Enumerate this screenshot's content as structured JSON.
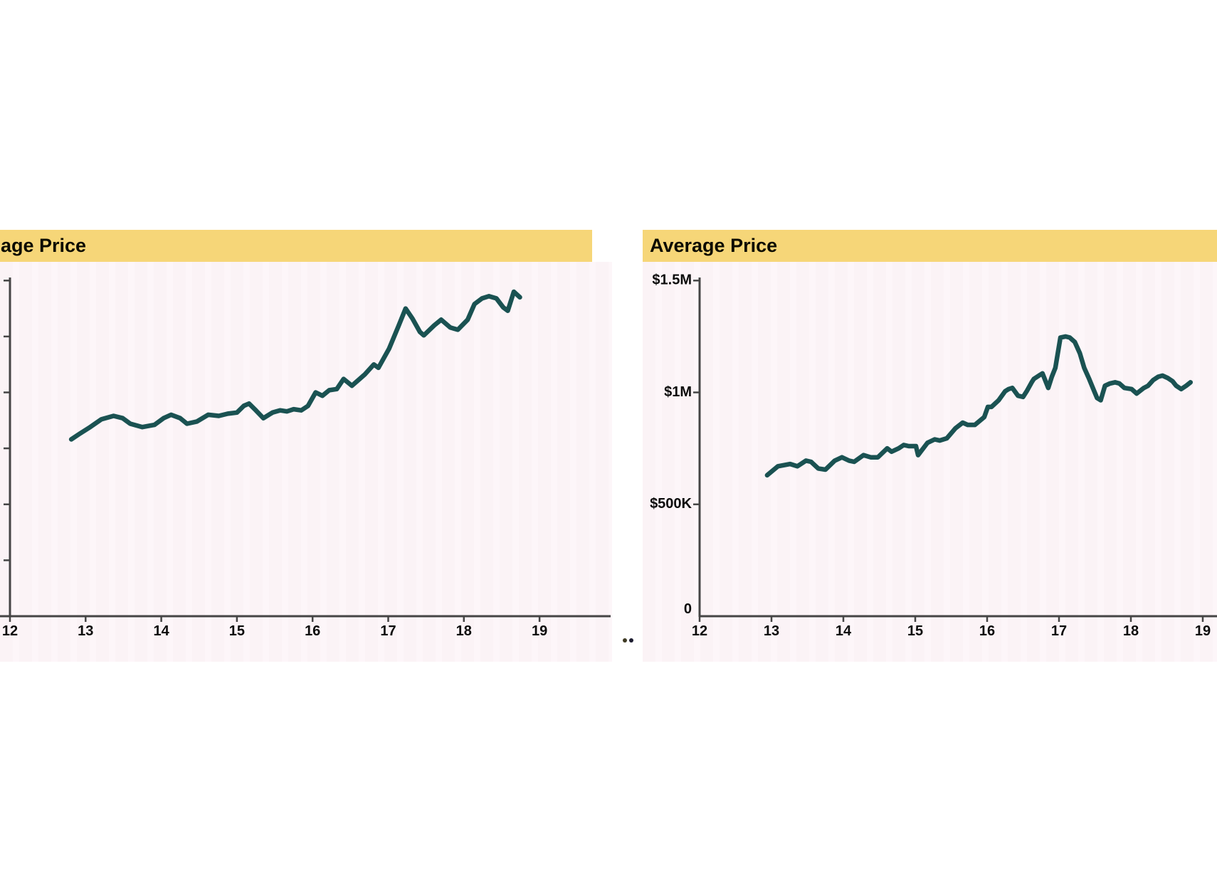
{
  "colors": {
    "header_yellow": "#f6d678",
    "plot_background": "#fbf3f6",
    "line_teal": "#1a5252",
    "axis_gray": "#454545",
    "label_black": "#0b0b0b",
    "separator_dot_left": "#3f3a24",
    "separator_dot_right": "#1c1c30"
  },
  "separator": {
    "dot_count": 2
  },
  "chart_data": [
    {
      "type": "line",
      "panel": "left",
      "title": "age Price",
      "title_note_visible_fragment": "age Price",
      "x_tick_labels": [
        "12",
        "13",
        "14",
        "15",
        "16",
        "17",
        "18",
        "19"
      ],
      "x_tick_values": [
        12,
        13,
        14,
        15,
        16,
        17,
        18,
        19
      ],
      "y_tick_values": [
        1500,
        1250,
        1000,
        750,
        500,
        250
      ],
      "y_tick_labels": [
        "",
        "",
        "",
        "",
        "",
        ""
      ],
      "origin_label": "",
      "xlim": [
        12,
        19.8
      ],
      "ylim": [
        0,
        1500
      ],
      "grid": false,
      "legend": "none",
      "series": [
        {
          "name": "Average Price",
          "x": [
            12.81,
            12.92,
            13.06,
            13.21,
            13.37,
            13.49,
            13.59,
            13.75,
            13.91,
            14.03,
            14.13,
            14.25,
            14.34,
            14.47,
            14.62,
            14.76,
            14.88,
            15.0,
            15.09,
            15.16,
            15.25,
            15.35,
            15.47,
            15.57,
            15.66,
            15.75,
            15.85,
            15.94,
            16.04,
            16.13,
            16.22,
            16.32,
            16.41,
            16.52,
            16.69,
            16.81,
            16.87,
            17.01,
            17.14,
            17.23,
            17.32,
            17.42,
            17.47,
            17.61,
            17.7,
            17.82,
            17.92,
            18.05,
            18.14,
            18.24,
            18.33,
            18.43,
            18.52,
            18.58,
            18.66,
            18.74
          ],
          "y_thousand_usd": [
            790,
            815,
            845,
            880,
            895,
            885,
            860,
            845,
            855,
            885,
            900,
            885,
            860,
            870,
            900,
            895,
            905,
            910,
            940,
            950,
            920,
            885,
            910,
            920,
            915,
            925,
            920,
            940,
            1000,
            985,
            1010,
            1015,
            1060,
            1030,
            1080,
            1125,
            1110,
            1195,
            1300,
            1375,
            1330,
            1270,
            1255,
            1300,
            1325,
            1290,
            1280,
            1325,
            1395,
            1420,
            1430,
            1420,
            1380,
            1365,
            1450,
            1425
          ]
        }
      ]
    },
    {
      "type": "line",
      "panel": "right",
      "title": "Average Price",
      "x_tick_labels": [
        "12",
        "13",
        "14",
        "15",
        "16",
        "17",
        "18",
        "19"
      ],
      "x_tick_values": [
        12,
        13,
        14,
        15,
        16,
        17,
        18,
        19
      ],
      "y_tick_values": [
        1500,
        1000,
        500
      ],
      "y_tick_labels": [
        "$1.5M",
        "$1M",
        "$500K"
      ],
      "origin_label": "0",
      "xlim": [
        12,
        19.2
      ],
      "ylim": [
        0,
        1500
      ],
      "grid": false,
      "legend": "none",
      "series": [
        {
          "name": "Average Price",
          "x": [
            12.94,
            13.09,
            13.26,
            13.36,
            13.48,
            13.55,
            13.65,
            13.75,
            13.88,
            13.98,
            14.08,
            14.15,
            14.28,
            14.38,
            14.48,
            14.61,
            14.67,
            14.77,
            14.84,
            14.91,
            15.01,
            15.04,
            15.17,
            15.27,
            15.34,
            15.44,
            15.56,
            15.66,
            15.73,
            15.83,
            15.96,
            16.01,
            16.06,
            16.16,
            16.25,
            16.3,
            16.35,
            16.43,
            16.5,
            16.55,
            16.62,
            16.65,
            16.72,
            16.77,
            16.85,
            16.9,
            16.95,
            17.02,
            17.09,
            17.15,
            17.22,
            17.29,
            17.35,
            17.42,
            17.49,
            17.53,
            17.58,
            17.64,
            17.71,
            17.78,
            17.84,
            17.91,
            18.01,
            18.08,
            18.18,
            18.24,
            18.31,
            18.38,
            18.44,
            18.51,
            18.58,
            18.63,
            18.7,
            18.77,
            18.83
          ],
          "y_thousand_usd": [
            630,
            670,
            680,
            670,
            695,
            690,
            660,
            655,
            695,
            710,
            695,
            690,
            720,
            710,
            710,
            750,
            735,
            750,
            765,
            760,
            760,
            720,
            775,
            790,
            785,
            795,
            840,
            865,
            855,
            855,
            890,
            935,
            935,
            965,
            1005,
            1015,
            1020,
            985,
            980,
            1005,
            1045,
            1060,
            1075,
            1085,
            1020,
            1070,
            1110,
            1245,
            1250,
            1245,
            1225,
            1175,
            1110,
            1060,
            1005,
            975,
            965,
            1030,
            1040,
            1045,
            1040,
            1020,
            1015,
            995,
            1020,
            1030,
            1055,
            1070,
            1075,
            1065,
            1050,
            1030,
            1015,
            1030,
            1045
          ]
        }
      ]
    }
  ]
}
